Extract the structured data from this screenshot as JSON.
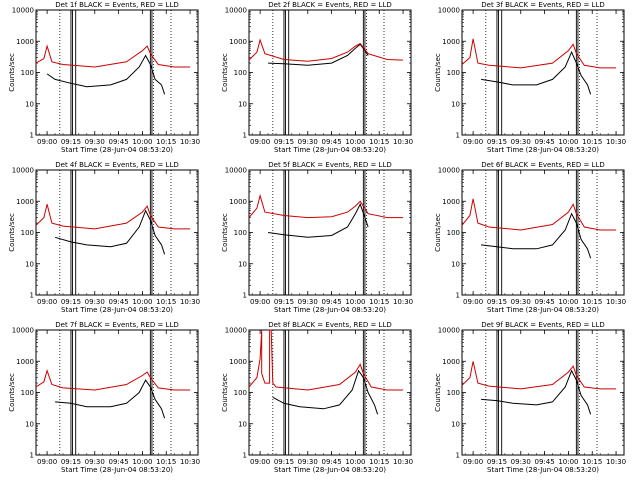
{
  "chart_data": [
    {
      "type": "line",
      "title": "Det 1f BLACK = Events, RED = LLD",
      "xlabel": "Start Time (28-Jun-04 08:53:20)",
      "ylabel": "Counts/sec",
      "xlim": [
        "08:53",
        "10:35"
      ],
      "ylim": [
        1,
        10000
      ],
      "yscale": "log",
      "x_ticks": [
        "09:00",
        "09:15",
        "09:30",
        "09:45",
        "10:00",
        "10:15",
        "10:30"
      ],
      "y_ticks": [
        "1",
        "10",
        "100",
        "1000",
        "10000"
      ],
      "solid_markers": [
        "09:15",
        "09:16",
        "09:18",
        "10:05",
        "10:06"
      ],
      "dotted_markers": [
        "09:08",
        "10:07",
        "10:18"
      ],
      "series": [
        {
          "name": "Events",
          "color": "#000000",
          "x": [
            "09:00",
            "09:05",
            "09:15",
            "09:25",
            "09:40",
            "09:50",
            "09:58",
            "10:02",
            "10:05",
            "10:08",
            "10:12",
            "10:14"
          ],
          "values": [
            90,
            60,
            45,
            35,
            40,
            60,
            150,
            350,
            180,
            60,
            40,
            20
          ]
        },
        {
          "name": "LLD",
          "color": "#cc0000",
          "x": [
            "08:53",
            "08:58",
            "09:00",
            "09:03",
            "09:10",
            "09:30",
            "09:50",
            "10:00",
            "10:03",
            "10:05",
            "10:10",
            "10:20",
            "10:30"
          ],
          "values": [
            200,
            280,
            700,
            220,
            180,
            150,
            220,
            500,
            700,
            400,
            180,
            150,
            150
          ]
        }
      ]
    },
    {
      "type": "line",
      "title": "Det 2f BLACK = Events, RED = LLD",
      "xlabel": "Start Time (28-Jun-04 08:53:20)",
      "ylabel": "Counts/sec",
      "xlim": [
        "08:53",
        "10:35"
      ],
      "ylim": [
        1,
        10000
      ],
      "yscale": "log",
      "x_ticks": [
        "09:00",
        "09:15",
        "09:30",
        "09:45",
        "10:00",
        "10:15",
        "10:30"
      ],
      "y_ticks": [
        "1",
        "10",
        "100",
        "1000",
        "10000"
      ],
      "solid_markers": [
        "09:15",
        "09:16",
        "09:18",
        "10:05",
        "10:06"
      ],
      "dotted_markers": [
        "09:08",
        "10:07",
        "10:18"
      ],
      "series": [
        {
          "name": "Events",
          "color": "#000000",
          "x": [
            "09:05",
            "09:15",
            "09:30",
            "09:45",
            "09:55",
            "10:00",
            "10:03",
            "10:06",
            "10:08"
          ],
          "values": [
            200,
            190,
            170,
            200,
            350,
            600,
            800,
            500,
            350
          ]
        },
        {
          "name": "LLD",
          "color": "#cc0000",
          "x": [
            "08:53",
            "08:58",
            "09:00",
            "09:03",
            "09:15",
            "09:30",
            "09:45",
            "09:55",
            "10:00",
            "10:03",
            "10:08",
            "10:20",
            "10:30"
          ],
          "values": [
            250,
            450,
            1100,
            400,
            260,
            230,
            280,
            450,
            700,
            850,
            400,
            260,
            250
          ]
        }
      ]
    },
    {
      "type": "line",
      "title": "Det 3f BLACK = Events, RED = LLD",
      "xlabel": "Start Time (28-Jun-04 08:53:20)",
      "ylabel": "Counts/sec",
      "xlim": [
        "08:53",
        "10:35"
      ],
      "ylim": [
        1,
        10000
      ],
      "yscale": "log",
      "x_ticks": [
        "09:00",
        "09:15",
        "09:30",
        "09:45",
        "10:00",
        "10:15",
        "10:30"
      ],
      "y_ticks": [
        "1",
        "10",
        "100",
        "1000",
        "10000"
      ],
      "solid_markers": [
        "09:15",
        "09:16",
        "09:18",
        "10:05",
        "10:06"
      ],
      "dotted_markers": [
        "09:08",
        "10:07",
        "10:18"
      ],
      "series": [
        {
          "name": "Events",
          "color": "#000000",
          "x": [
            "09:05",
            "09:15",
            "09:25",
            "09:40",
            "09:50",
            "09:58",
            "10:02",
            "10:05",
            "10:08",
            "10:12",
            "10:14"
          ],
          "values": [
            60,
            50,
            40,
            40,
            60,
            150,
            450,
            200,
            80,
            40,
            20
          ]
        },
        {
          "name": "LLD",
          "color": "#cc0000",
          "x": [
            "08:53",
            "08:58",
            "09:00",
            "09:03",
            "09:10",
            "09:30",
            "09:50",
            "10:00",
            "10:03",
            "10:05",
            "10:10",
            "10:20",
            "10:30"
          ],
          "values": [
            180,
            300,
            1200,
            200,
            170,
            140,
            200,
            500,
            800,
            400,
            170,
            140,
            140
          ]
        }
      ]
    },
    {
      "type": "line",
      "title": "Det 4f BLACK = Events, RED = LLD",
      "xlabel": "Start Time (28-Jun-04 08:53:20)",
      "ylabel": "Counts/sec",
      "xlim": [
        "08:53",
        "10:35"
      ],
      "ylim": [
        1,
        10000
      ],
      "yscale": "log",
      "x_ticks": [
        "09:00",
        "09:15",
        "09:30",
        "09:45",
        "10:00",
        "10:15",
        "10:30"
      ],
      "y_ticks": [
        "1",
        "10",
        "100",
        "1000",
        "10000"
      ],
      "solid_markers": [
        "09:15",
        "09:16",
        "09:18",
        "10:05",
        "10:06"
      ],
      "dotted_markers": [
        "09:08",
        "10:07",
        "10:18"
      ],
      "series": [
        {
          "name": "Events",
          "color": "#000000",
          "x": [
            "09:05",
            "09:15",
            "09:25",
            "09:40",
            "09:50",
            "09:58",
            "10:02",
            "10:05",
            "10:08",
            "10:12",
            "10:14"
          ],
          "values": [
            70,
            50,
            40,
            35,
            45,
            150,
            500,
            250,
            80,
            40,
            20
          ]
        },
        {
          "name": "LLD",
          "color": "#cc0000",
          "x": [
            "08:53",
            "08:58",
            "09:00",
            "09:03",
            "09:10",
            "09:30",
            "09:50",
            "10:00",
            "10:03",
            "10:05",
            "10:10",
            "10:20",
            "10:30"
          ],
          "values": [
            170,
            300,
            800,
            200,
            160,
            130,
            200,
            450,
            700,
            350,
            150,
            130,
            130
          ]
        }
      ]
    },
    {
      "type": "line",
      "title": "Det 5f BLACK = Events, RED = LLD",
      "xlabel": "Start Time (28-Jun-04 08:53:20)",
      "ylabel": "Counts/sec",
      "xlim": [
        "08:53",
        "10:35"
      ],
      "ylim": [
        1,
        10000
      ],
      "yscale": "log",
      "x_ticks": [
        "09:00",
        "09:15",
        "09:30",
        "09:45",
        "10:00",
        "10:15",
        "10:30"
      ],
      "y_ticks": [
        "1",
        "10",
        "100",
        "1000",
        "10000"
      ],
      "solid_markers": [
        "09:15",
        "09:16",
        "09:18",
        "10:05",
        "10:06"
      ],
      "dotted_markers": [
        "09:08",
        "10:07",
        "10:18"
      ],
      "series": [
        {
          "name": "Events",
          "color": "#000000",
          "x": [
            "09:05",
            "09:15",
            "09:30",
            "09:45",
            "09:55",
            "10:00",
            "10:03",
            "10:06",
            "10:08"
          ],
          "values": [
            100,
            85,
            70,
            80,
            150,
            400,
            800,
            300,
            150
          ]
        },
        {
          "name": "LLD",
          "color": "#cc0000",
          "x": [
            "08:53",
            "08:58",
            "09:00",
            "09:03",
            "09:15",
            "09:30",
            "09:45",
            "09:55",
            "10:00",
            "10:03",
            "10:08",
            "10:20",
            "10:30"
          ],
          "values": [
            300,
            600,
            1500,
            450,
            350,
            300,
            320,
            450,
            700,
            1000,
            400,
            300,
            300
          ]
        }
      ]
    },
    {
      "type": "line",
      "title": "Det 6f BLACK = Events, RED = LLD",
      "xlabel": "Start Time (28-Jun-04 08:53:20)",
      "ylabel": "Counts/sec",
      "xlim": [
        "08:53",
        "10:35"
      ],
      "ylim": [
        1,
        10000
      ],
      "yscale": "log",
      "x_ticks": [
        "09:00",
        "09:15",
        "09:30",
        "09:45",
        "10:00",
        "10:15",
        "10:30"
      ],
      "y_ticks": [
        "1",
        "10",
        "100",
        "1000",
        "10000"
      ],
      "solid_markers": [
        "09:15",
        "09:16",
        "09:18",
        "10:05",
        "10:06"
      ],
      "dotted_markers": [
        "09:08",
        "10:07",
        "10:18"
      ],
      "series": [
        {
          "name": "Events",
          "color": "#000000",
          "x": [
            "09:05",
            "09:15",
            "09:25",
            "09:40",
            "09:50",
            "09:58",
            "10:02",
            "10:05",
            "10:08",
            "10:12",
            "10:14"
          ],
          "values": [
            40,
            35,
            30,
            30,
            40,
            120,
            400,
            200,
            60,
            30,
            15
          ]
        },
        {
          "name": "LLD",
          "color": "#cc0000",
          "x": [
            "08:53",
            "08:58",
            "09:00",
            "09:03",
            "09:10",
            "09:30",
            "09:50",
            "10:00",
            "10:03",
            "10:05",
            "10:10",
            "10:20",
            "10:30"
          ],
          "values": [
            170,
            350,
            1200,
            200,
            150,
            120,
            180,
            450,
            800,
            400,
            150,
            120,
            120
          ]
        }
      ]
    },
    {
      "type": "line",
      "title": "Det 7f BLACK = Events, RED = LLD",
      "xlabel": "Start Time (28-Jun-04 08:53:20)",
      "ylabel": "Counts/sec",
      "xlim": [
        "08:53",
        "10:35"
      ],
      "ylim": [
        1,
        10000
      ],
      "yscale": "log",
      "x_ticks": [
        "09:00",
        "09:15",
        "09:30",
        "09:45",
        "10:00",
        "10:15",
        "10:30"
      ],
      "y_ticks": [
        "1",
        "10",
        "100",
        "1000",
        "10000"
      ],
      "solid_markers": [
        "09:15",
        "09:16",
        "09:18",
        "10:05",
        "10:06"
      ],
      "dotted_markers": [
        "09:08",
        "10:07",
        "10:18"
      ],
      "series": [
        {
          "name": "Events",
          "color": "#000000",
          "x": [
            "09:05",
            "09:15",
            "09:25",
            "09:40",
            "09:50",
            "09:58",
            "10:02",
            "10:05",
            "10:08",
            "10:12",
            "10:14"
          ],
          "values": [
            50,
            45,
            35,
            35,
            45,
            100,
            250,
            150,
            60,
            30,
            15
          ]
        },
        {
          "name": "LLD",
          "color": "#cc0000",
          "x": [
            "08:53",
            "08:58",
            "09:00",
            "09:03",
            "09:10",
            "09:30",
            "09:50",
            "10:00",
            "10:03",
            "10:05",
            "10:10",
            "10:20",
            "10:30"
          ],
          "values": [
            150,
            220,
            500,
            180,
            140,
            120,
            180,
            350,
            450,
            300,
            140,
            120,
            120
          ]
        }
      ]
    },
    {
      "type": "line",
      "title": "Det 8f BLACK = Events, RED = LLD",
      "xlabel": "Start Time (28-Jun-04 08:53:20)",
      "ylabel": "Counts/sec",
      "xlim": [
        "08:53",
        "10:35"
      ],
      "ylim": [
        1,
        10000
      ],
      "yscale": "log",
      "x_ticks": [
        "09:00",
        "09:15",
        "09:30",
        "09:45",
        "10:00",
        "10:15",
        "10:30"
      ],
      "y_ticks": [
        "1",
        "10",
        "100",
        "1000",
        "10000"
      ],
      "solid_markers": [
        "09:15",
        "09:16",
        "09:18",
        "10:05",
        "10:06"
      ],
      "dotted_markers": [
        "09:08",
        "10:07",
        "10:18"
      ],
      "series": [
        {
          "name": "Events",
          "color": "#000000",
          "x": [
            "09:08",
            "09:15",
            "09:25",
            "09:40",
            "09:50",
            "09:58",
            "10:02",
            "10:05",
            "10:08",
            "10:12",
            "10:14"
          ],
          "values": [
            70,
            45,
            35,
            30,
            40,
            120,
            500,
            300,
            100,
            40,
            20
          ]
        },
        {
          "name": "LLD",
          "color": "#cc0000",
          "x": [
            "08:53",
            "08:58",
            "09:00",
            "09:01",
            "09:01",
            "09:03",
            "09:06",
            "09:06",
            "09:07",
            "09:08",
            "09:10",
            "09:30",
            "09:50",
            "10:00",
            "10:03",
            "10:05",
            "10:10",
            "10:20",
            "10:30"
          ],
          "values": [
            150,
            300,
            1200,
            10000,
            400,
            200,
            200,
            10000,
            10000,
            200,
            150,
            120,
            180,
            450,
            800,
            400,
            150,
            120,
            120
          ]
        }
      ]
    },
    {
      "type": "line",
      "title": "Det 9f BLACK = Events, RED = LLD",
      "xlabel": "Start Time (28-Jun-04 08:53:20)",
      "ylabel": "Counts/sec",
      "xlim": [
        "08:53",
        "10:35"
      ],
      "ylim": [
        1,
        10000
      ],
      "yscale": "log",
      "x_ticks": [
        "09:00",
        "09:15",
        "09:30",
        "09:45",
        "10:00",
        "10:15",
        "10:30"
      ],
      "y_ticks": [
        "1",
        "10",
        "100",
        "1000",
        "10000"
      ],
      "solid_markers": [
        "09:15",
        "09:16",
        "09:18",
        "10:05",
        "10:06"
      ],
      "dotted_markers": [
        "09:08",
        "10:07",
        "10:18"
      ],
      "series": [
        {
          "name": "Events",
          "color": "#000000",
          "x": [
            "09:05",
            "09:15",
            "09:25",
            "09:40",
            "09:50",
            "09:58",
            "10:02",
            "10:05",
            "10:08",
            "10:12",
            "10:14"
          ],
          "values": [
            60,
            55,
            45,
            40,
            50,
            150,
            500,
            250,
            80,
            40,
            20
          ]
        },
        {
          "name": "LLD",
          "color": "#cc0000",
          "x": [
            "08:53",
            "08:58",
            "09:00",
            "09:03",
            "09:10",
            "09:30",
            "09:50",
            "10:00",
            "10:03",
            "10:05",
            "10:10",
            "10:20",
            "10:30"
          ],
          "values": [
            170,
            300,
            1000,
            200,
            160,
            130,
            180,
            450,
            700,
            350,
            150,
            130,
            130
          ]
        }
      ]
    }
  ]
}
